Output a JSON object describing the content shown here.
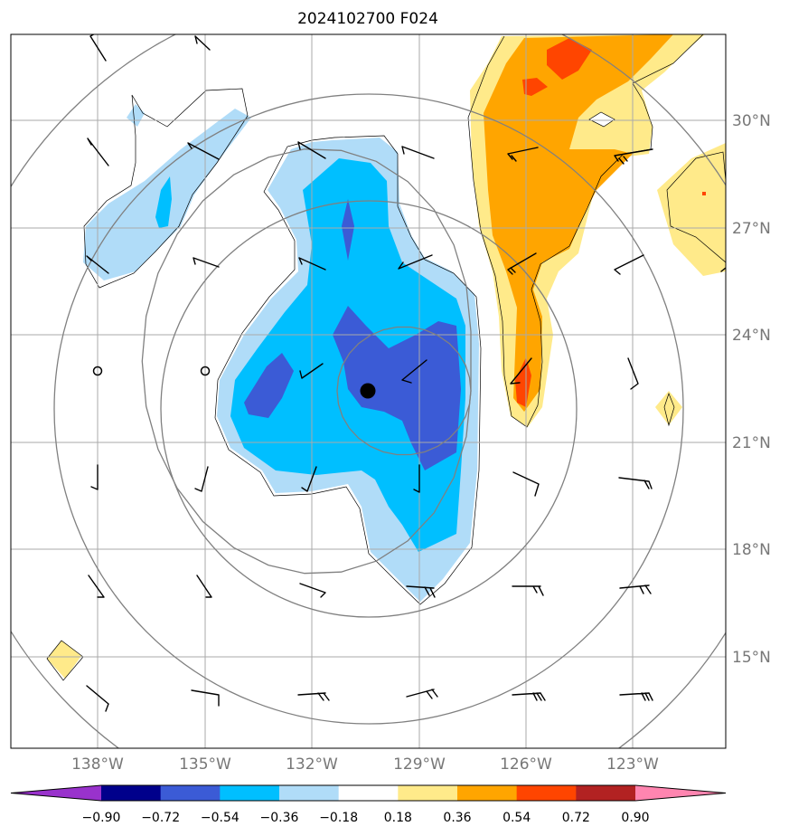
{
  "title": "2024102700 F024",
  "map": {
    "lat_ticks": [
      "30°N",
      "27°N",
      "24°N",
      "21°N",
      "18°N",
      "15°N"
    ],
    "lon_ticks": [
      "138°W",
      "135°W",
      "132°W",
      "129°W",
      "126°W",
      "123°W"
    ],
    "storm_center": {
      "lon": -130.4,
      "lat": 22.4
    },
    "range_rings": 5,
    "colors": {
      "light_blue": "#b0dcf8",
      "sky_blue": "#00bfff",
      "royal_blue": "#3b5bd6",
      "light_yellow": "#ffea8a",
      "orange": "#ffa500",
      "red_orange": "#ff4500"
    }
  },
  "colorbar": {
    "tick_labels": [
      "−0.90",
      "−0.72",
      "−0.54",
      "−0.36",
      "−0.18",
      "0.18",
      "0.36",
      "0.54",
      "0.72",
      "0.90"
    ],
    "colors": [
      "#9932cc",
      "#00008b",
      "#3b5bd6",
      "#00bfff",
      "#b0dcf8",
      "#ffffff",
      "#ffea8a",
      "#ffa500",
      "#ff4500",
      "#b22222",
      "#ff85b0"
    ]
  }
}
